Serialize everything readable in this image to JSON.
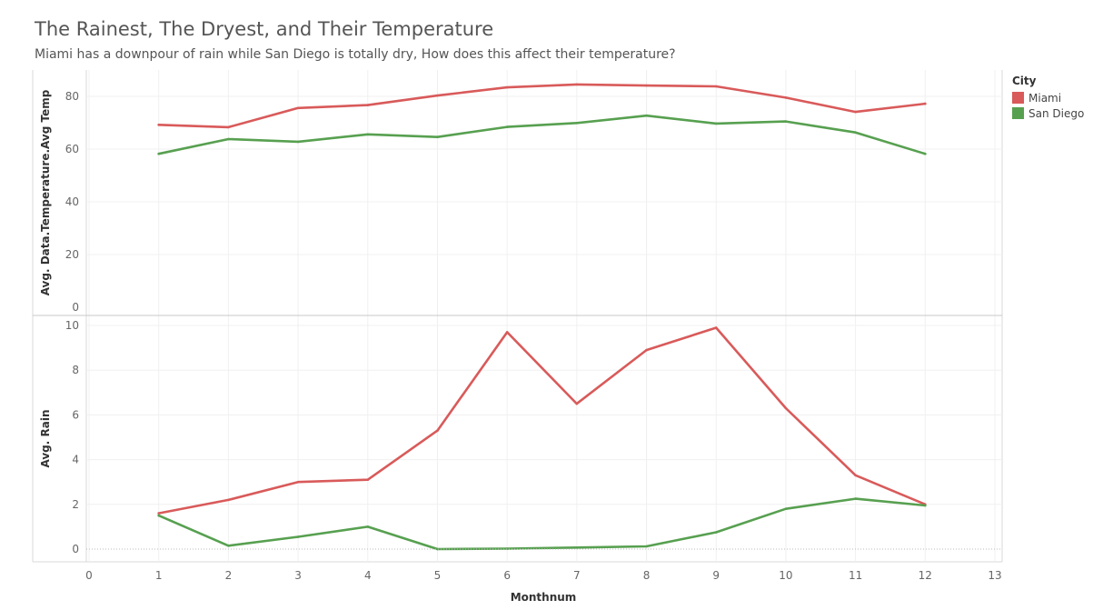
{
  "title": "The Rainest, The Dryest, and Their Temperature",
  "subtitle": "Miami has a downpour of rain while San Diego is totally dry, How does this affect their temperature?",
  "legend": {
    "title": "City",
    "items": [
      {
        "label": "Miami",
        "color": "#d95a5a"
      },
      {
        "label": "San Diego",
        "color": "#57a050"
      }
    ]
  },
  "chart_data": [
    {
      "type": "line",
      "ylabel": "Avg. Data.Temperature.Avg Temp",
      "xlabel": "",
      "ylim": [
        0,
        86
      ],
      "yticks": [
        0,
        20,
        40,
        60,
        80
      ],
      "xlim": [
        0,
        13
      ],
      "grid": true,
      "legend_placement": "right",
      "x": [
        1,
        2,
        3,
        4,
        5,
        6,
        7,
        8,
        9,
        10,
        11,
        12
      ],
      "series": [
        {
          "name": "Miami",
          "color": "#d95a5a",
          "values": [
            69.2,
            68.3,
            75.6,
            76.7,
            80.3,
            83.4,
            84.5,
            84.1,
            83.8,
            79.5,
            74.1,
            77.2
          ]
        },
        {
          "name": "San Diego",
          "color": "#57a050",
          "values": [
            58.2,
            63.8,
            62.8,
            65.6,
            64.6,
            68.4,
            69.9,
            72.7,
            69.7,
            70.5,
            66.3,
            58.2
          ]
        }
      ]
    },
    {
      "type": "line",
      "ylabel": "Avg. Rain",
      "xlabel": "Monthnum",
      "ylim": [
        -0.35,
        10.1
      ],
      "yticks": [
        0,
        2,
        4,
        6,
        8,
        10
      ],
      "xlim": [
        0,
        13
      ],
      "xticks": [
        0,
        1,
        2,
        3,
        4,
        5,
        6,
        7,
        8,
        9,
        10,
        11,
        12,
        13
      ],
      "grid": true,
      "legend_placement": "right",
      "x": [
        1,
        2,
        3,
        4,
        5,
        6,
        7,
        8,
        9,
        10,
        11,
        12
      ],
      "series": [
        {
          "name": "Miami",
          "color": "#d95a5a",
          "values": [
            1.6,
            2.2,
            3.0,
            3.1,
            5.3,
            9.7,
            6.5,
            8.9,
            9.9,
            6.3,
            3.3,
            2.0
          ]
        },
        {
          "name": "San Diego",
          "color": "#57a050",
          "values": [
            1.5,
            0.15,
            0.55,
            1.0,
            0.0,
            0.02,
            0.07,
            0.12,
            0.75,
            1.8,
            2.25,
            1.95
          ]
        }
      ]
    }
  ]
}
